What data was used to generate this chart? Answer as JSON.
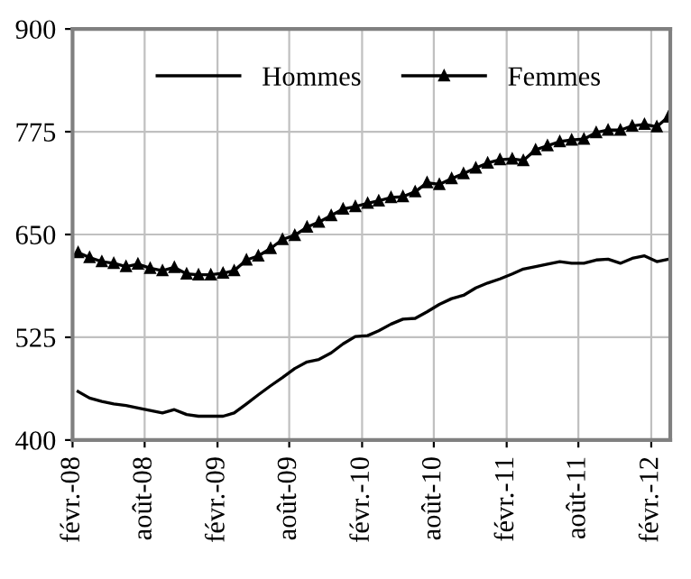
{
  "chart_data": {
    "type": "line",
    "x": [
      "2008-02-15",
      "2008-03-15",
      "2008-04-15",
      "2008-05-15",
      "2008-06-15",
      "2008-07-15",
      "2008-08-15",
      "2008-09-15",
      "2008-10-15",
      "2008-11-15",
      "2008-12-15",
      "2009-01-15",
      "2009-02-15",
      "2009-03-15",
      "2009-04-15",
      "2009-05-15",
      "2009-06-15",
      "2009-07-15",
      "2009-08-15",
      "2009-09-15",
      "2009-10-15",
      "2009-11-15",
      "2009-12-15",
      "2010-01-15",
      "2010-02-15",
      "2010-03-15",
      "2010-04-15",
      "2010-05-15",
      "2010-06-15",
      "2010-07-15",
      "2010-08-15",
      "2010-09-15",
      "2010-10-15",
      "2010-11-15",
      "2010-12-15",
      "2011-01-15",
      "2011-02-15",
      "2011-03-15",
      "2011-04-15",
      "2011-05-15",
      "2011-06-15",
      "2011-07-15",
      "2011-08-15",
      "2011-09-15",
      "2011-10-15",
      "2011-11-15",
      "2011-12-15",
      "2012-01-15",
      "2012-02-15",
      "2012-03-15"
    ],
    "series": [
      {
        "name": "Hommes",
        "color": "#000000",
        "marker": "none",
        "values": [
          459,
          451,
          447,
          444,
          442,
          439,
          436,
          433,
          437,
          431,
          429,
          429,
          429,
          433,
          444,
          455,
          466,
          476,
          487,
          495,
          498,
          506,
          517,
          526,
          527,
          533,
          541,
          547,
          548,
          556,
          565,
          572,
          576,
          585,
          591,
          596,
          602,
          608,
          611,
          614,
          617,
          615,
          615,
          619,
          620,
          615,
          621,
          624,
          617,
          620
        ]
      },
      {
        "name": "Femmes",
        "color": "#000000",
        "marker": "triangle",
        "values": [
          628,
          622,
          617,
          615,
          611,
          614,
          609,
          606,
          610,
          602,
          601,
          601,
          603,
          606,
          619,
          624,
          633,
          644,
          649,
          659,
          665,
          673,
          681,
          684,
          688,
          691,
          695,
          696,
          702,
          713,
          711,
          718,
          724,
          731,
          737,
          741,
          742,
          740,
          753,
          758,
          763,
          765,
          766,
          774,
          777,
          777,
          782,
          784,
          781,
          793
        ]
      }
    ],
    "xlim": [
      "2008-02",
      "2012-03-20"
    ],
    "xticks": [
      {
        "value": "2008-02",
        "label": "févr.-08"
      },
      {
        "value": "2008-08",
        "label": "août-08"
      },
      {
        "value": "2009-02",
        "label": "févr.-09"
      },
      {
        "value": "2009-08",
        "label": "août-09"
      },
      {
        "value": "2010-02",
        "label": "févr.-10"
      },
      {
        "value": "2010-08",
        "label": "août-10"
      },
      {
        "value": "2011-02",
        "label": "févr.-11"
      },
      {
        "value": "2011-08",
        "label": "août-11"
      },
      {
        "value": "2012-02",
        "label": "févr.-12"
      }
    ],
    "ylim": [
      400,
      900
    ],
    "yticks": [
      400,
      525,
      650,
      775,
      900
    ],
    "grid": true,
    "legend": "top left",
    "line_style": "solid"
  }
}
